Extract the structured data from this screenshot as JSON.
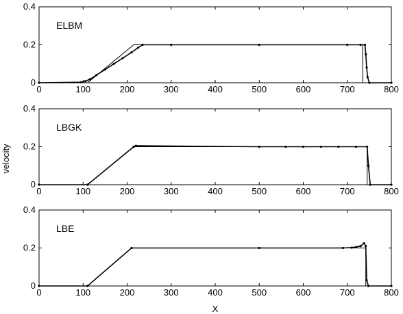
{
  "chart_data": {
    "shared": {
      "xlabel": "X",
      "ylabel": "velocity",
      "xlim": [
        0,
        800
      ],
      "ylim": [
        0,
        0.4
      ],
      "xticks": [
        "0",
        "100",
        "200",
        "300",
        "400",
        "500",
        "600",
        "700",
        "800"
      ],
      "yticks": [
        "0",
        "0.2",
        "0.4"
      ],
      "grid": false,
      "line_color": "#000000",
      "marker_color": "#000000"
    },
    "panels": [
      {
        "type": "line",
        "label": "ELBM",
        "series": [
          {
            "kind": "reference-line",
            "x": [
              0,
              110,
              215,
              735,
              735.01,
              800
            ],
            "y": [
              0,
              0,
              0.2,
              0.2,
              0,
              0
            ]
          },
          {
            "kind": "dots",
            "x": [
              0,
              95,
              105,
              115,
              130,
              150,
              170,
              190,
              210,
              225,
              235,
              300,
              500,
              700,
              730,
              740,
              742,
              744,
              746,
              750,
              800
            ],
            "y": [
              0,
              0.003,
              0.008,
              0.018,
              0.04,
              0.07,
              0.1,
              0.13,
              0.16,
              0.185,
              0.2,
              0.2,
              0.2,
              0.2,
              0.2,
              0.2,
              0.15,
              0.08,
              0.03,
              0,
              0
            ]
          }
        ]
      },
      {
        "type": "scatter",
        "label": "LBGK",
        "series": [
          {
            "kind": "reference-line",
            "x": [
              0,
              110,
              215,
              745,
              745.01,
              800
            ],
            "y": [
              0,
              0,
              0.2,
              0.2,
              0,
              0
            ]
          },
          {
            "kind": "dots",
            "x": [
              0,
              110,
              215,
              220,
              500,
              560,
              600,
              640,
              680,
              720,
              745,
              748,
              752,
              800
            ],
            "y": [
              0,
              0,
              0.2,
              0.205,
              0.2,
              0.2,
              0.2,
              0.2,
              0.2,
              0.2,
              0.2,
              0.1,
              0,
              0
            ]
          }
        ]
      },
      {
        "type": "line",
        "label": "LBE",
        "series": [
          {
            "kind": "reference-line",
            "x": [
              0,
              110,
              210,
              742,
              742.01,
              800
            ],
            "y": [
              0,
              0,
              0.2,
              0.2,
              0,
              0
            ]
          },
          {
            "kind": "dots",
            "x": [
              0,
              110,
              210,
              500,
              690,
              710,
              720,
              730,
              738,
              742,
              744,
              748,
              800
            ],
            "y": [
              0,
              0,
              0.2,
              0.2,
              0.2,
              0.202,
              0.205,
              0.21,
              0.225,
              0.21,
              0.03,
              0,
              0
            ]
          }
        ]
      }
    ]
  }
}
